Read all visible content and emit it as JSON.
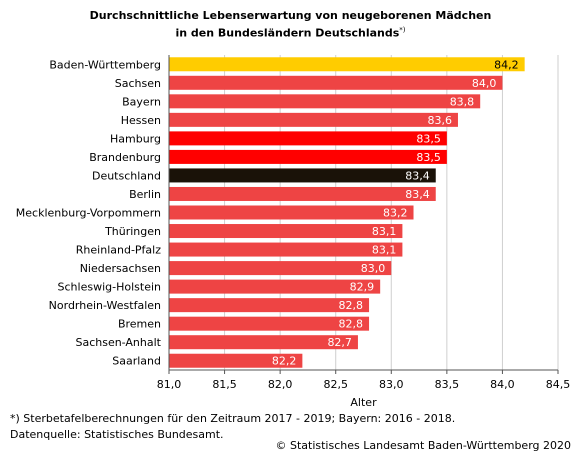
{
  "chart_data": {
    "type": "bar",
    "orientation": "horizontal",
    "title_line1": "Durchschnittliche Lebenserwartung von neugeborenen Mädchen",
    "title_line2": "in den Bundesländern Deutschlands",
    "title_marker": "*)",
    "categories": [
      "Baden-Württemberg",
      "Sachsen",
      "Bayern",
      "Hessen",
      "Hamburg",
      "Brandenburg",
      "Deutschland",
      "Berlin",
      "Mecklenburg-Vorpommern",
      "Thüringen",
      "Rheinland-Pfalz",
      "Niedersachsen",
      "Schleswig-Holstein",
      "Nordrhein-Westfalen",
      "Bremen",
      "Sachsen-Anhalt",
      "Saarland"
    ],
    "values": [
      84.2,
      84.0,
      83.8,
      83.6,
      83.5,
      83.5,
      83.4,
      83.4,
      83.2,
      83.1,
      83.1,
      83.0,
      82.9,
      82.8,
      82.8,
      82.7,
      82.2
    ],
    "value_labels": [
      "84,2",
      "84,0",
      "83,8",
      "83,6",
      "83,5",
      "83,5",
      "83,4",
      "83,4",
      "83,2",
      "83,1",
      "83,1",
      "83,0",
      "82,9",
      "82,8",
      "82,8",
      "82,7",
      "82,2"
    ],
    "bar_colors": [
      "#ffcc00",
      "#ee4444",
      "#ee4444",
      "#ee4444",
      "#ff0000",
      "#ff0000",
      "#1a1208",
      "#ee4444",
      "#ee4444",
      "#ee4444",
      "#ee4444",
      "#ee4444",
      "#ee4444",
      "#ee4444",
      "#ee4444",
      "#ee4444",
      "#ee4444"
    ],
    "xlabel": "Alter",
    "xlim": [
      81.0,
      84.5
    ],
    "xticks": [
      81.0,
      81.5,
      82.0,
      82.5,
      83.0,
      83.5,
      84.0,
      84.5
    ],
    "xtick_labels": [
      "81,0",
      "81,5",
      "82,0",
      "82,5",
      "83,0",
      "83,5",
      "84,0",
      "84,5"
    ],
    "grid": "vertical"
  },
  "footnote_marker": "*)",
  "footnote_text": " Sterbetafelberechnungen für den Zeitraum 2017 - 2019; Bayern: 2016 - 2018.",
  "data_source": "Datenquelle: Statistisches Bundesamt.",
  "copyright": "© Statistisches Landesamt Baden-Württemberg 2020"
}
